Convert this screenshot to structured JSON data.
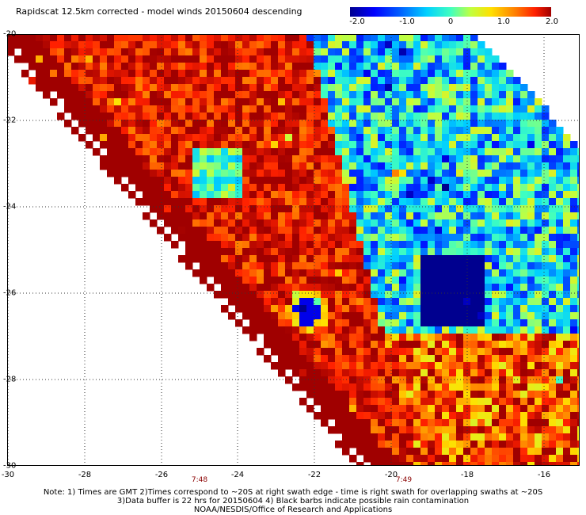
{
  "title": "Rapidscat 12.5km corrected - model winds 20150604 descending",
  "colorbar": {
    "labels": [
      "-2.0",
      "-1.0",
      "0",
      "1.0",
      "2.0"
    ],
    "stops": [
      -2.0,
      -1.0,
      0,
      1.0,
      2.0
    ]
  },
  "map": {
    "lat_labels": [
      "-20",
      "-22",
      "-24",
      "-26",
      "-28",
      "-30"
    ],
    "lon_labels": [
      "-30",
      "-28",
      "-26",
      "-24",
      "-22",
      "-20",
      "-18",
      "-16"
    ],
    "times": [
      "7:48",
      "7:49"
    ]
  },
  "notes": {
    "line1": "Note: 1) Times are GMT 2)Times correspond to ~20S at right swath edge - time is right swath for overlapping swaths at ~20S",
    "line2": "3)Data buffer is 22 hrs for 20150604 4) Black barbs indicate possible rain contamination",
    "line3": "NOAA/NESDIS/Office of Research and Applications"
  },
  "chart_data": {
    "type": "heatmap",
    "title": "Rapidscat 12.5km corrected - model winds 20150604 descending",
    "x_range": [
      -30,
      -15
    ],
    "y_range": [
      -30,
      -20
    ],
    "color_range": [
      -2.0,
      2.0
    ],
    "grid": true
  }
}
